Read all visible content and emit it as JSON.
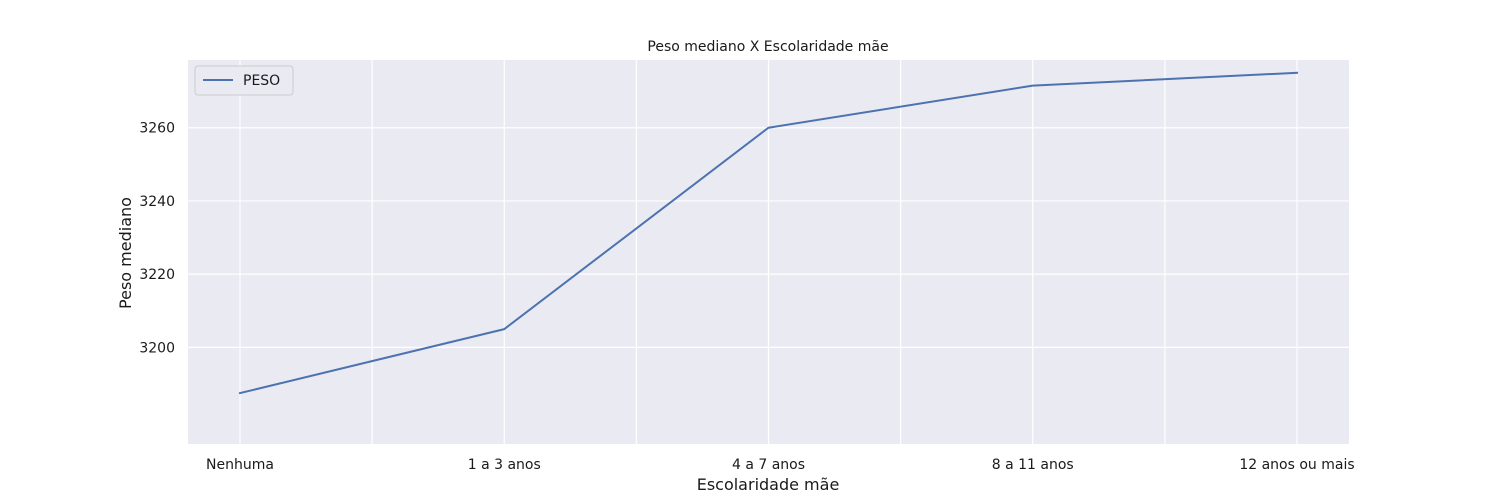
{
  "chart_data": {
    "type": "line",
    "title": "Peso mediano X Escolaridade mãe",
    "xlabel": "Escolaridade mãe",
    "ylabel": "Peso mediano",
    "categories": [
      "Nenhuma",
      "1 a 3 anos",
      "4 a 7 anos",
      "8 a 11 anos",
      "12 anos ou mais"
    ],
    "series": [
      {
        "name": "PESO",
        "values": [
          3187.5,
          3205,
          3260,
          3271.5,
          3275
        ],
        "color": "#4c72b0"
      }
    ],
    "yticks": [
      3200,
      3220,
      3240,
      3260
    ],
    "ylim": [
      3173.6,
      3278.5
    ],
    "grid": true,
    "legend_position": "top-left",
    "colors": {
      "plot_background": "#eaeaf2",
      "grid": "#ffffff"
    }
  }
}
